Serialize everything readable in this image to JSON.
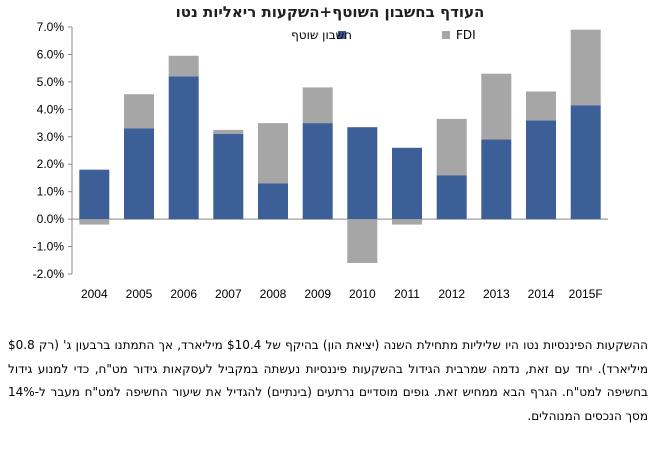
{
  "chart_data": {
    "type": "bar",
    "stacked": true,
    "title": "העודף בחשבון השוטף+השקעות ריאליות נטו",
    "categories": [
      "2004",
      "2005",
      "2006",
      "2007",
      "2008",
      "2009",
      "2010",
      "2011",
      "2012",
      "2013",
      "2014",
      "2015F"
    ],
    "series": [
      {
        "name": "חשבון שוטף",
        "color": "#3d5f97",
        "values": [
          1.8,
          3.3,
          5.2,
          3.1,
          1.3,
          3.5,
          3.35,
          2.6,
          1.6,
          2.9,
          3.6,
          4.15
        ]
      },
      {
        "name": "FDI",
        "color": "#a6a6a6",
        "values": [
          -0.2,
          1.25,
          0.75,
          0.15,
          2.2,
          1.3,
          -1.6,
          -0.2,
          2.05,
          2.4,
          1.05,
          2.75
        ]
      }
    ],
    "ylim": [
      -2.0,
      7.0
    ],
    "yticks": [
      "-2.0%",
      "-1.0%",
      "0.0%",
      "1.0%",
      "2.0%",
      "3.0%",
      "4.0%",
      "5.0%",
      "6.0%",
      "7.0%"
    ],
    "ytick_values": [
      -2,
      -1,
      0,
      1,
      2,
      3,
      4,
      5,
      6,
      7
    ],
    "legend_position": "top-center",
    "grid": false
  },
  "text": {
    "paragraph": "ההשקעות הפיננסיות נטו היו שליליות מתחילת השנה (יציאת הון) בהיקף של $10.4 מיליארד, אך התמתנו ברבעון ג' (רק $0.8 מיליארד). יחד עם זאת, נדמה שמרבית הגידול בהשקעות פיננסיות נעשתה במקביל לעסקאות גידור מט\"ח, כדי למנוע גידול בחשיפה למט\"ח. הגרף הבא ממחיש זאת. גופים מוסדיים נרתעים (בינתיים) להגדיל את שיעור החשיפה למט\"ח מעבר ל-14% מסך הנכסים המנוהלים."
  }
}
